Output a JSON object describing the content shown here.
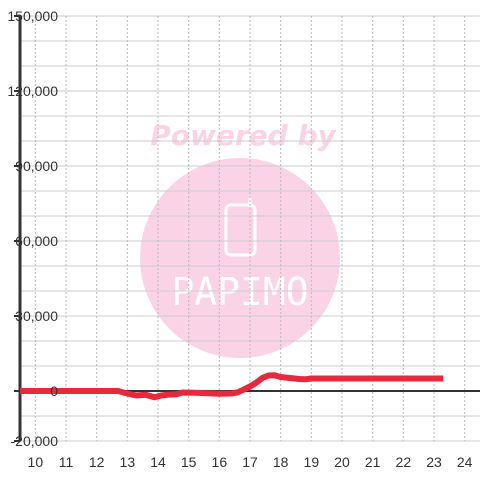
{
  "watermark": {
    "line1": "Powered by",
    "brand": "PAPIMO"
  },
  "chart_data": {
    "type": "line",
    "title": "",
    "xlabel": "",
    "ylabel": "",
    "xlim": [
      9.5,
      24.5
    ],
    "ylim": [
      -20000,
      150000
    ],
    "x_ticks": [
      "10",
      "11",
      "12",
      "13",
      "14",
      "15",
      "16",
      "17",
      "18",
      "19",
      "20",
      "21",
      "22",
      "23",
      "24"
    ],
    "y_ticks": [
      "-20,000",
      "0",
      "30,000",
      "60,000",
      "90,000",
      "120,000",
      "150,000"
    ],
    "y_tick_values": [
      -20000,
      0,
      30000,
      60000,
      90000,
      120000,
      150000
    ],
    "grid": true,
    "series": [
      {
        "color": "#e8283c",
        "x": [
          9.5,
          10,
          11,
          12,
          12.7,
          13.0,
          13.3,
          13.6,
          13.9,
          14.1,
          14.3,
          14.6,
          14.8,
          15.2,
          15.6,
          16.0,
          16.4,
          16.6,
          16.8,
          17.0,
          17.2,
          17.4,
          17.6,
          17.8,
          18.0,
          18.3,
          18.6,
          18.8,
          19.0,
          19.5,
          20,
          21,
          22,
          23,
          23.3
        ],
        "y": [
          0,
          0,
          0,
          0,
          0,
          -1000,
          -1800,
          -1500,
          -2500,
          -1800,
          -1500,
          -1300,
          -600,
          -700,
          -900,
          -1100,
          -1000,
          -500,
          600,
          1800,
          3300,
          5200,
          6200,
          6300,
          5600,
          5200,
          4800,
          4700,
          5000,
          5000,
          5000,
          5000,
          5000,
          5000,
          5000
        ]
      }
    ]
  }
}
